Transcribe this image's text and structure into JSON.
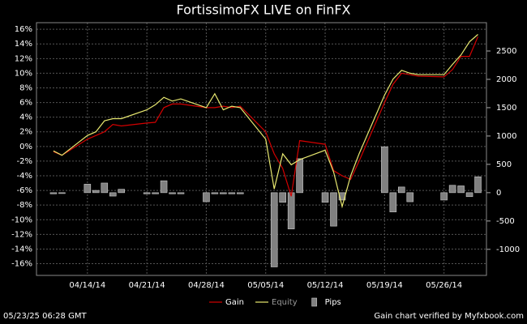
{
  "chart_data": {
    "type": "line",
    "title": "FortissimoFX LIVE on FinFX",
    "x": [
      "04/10/14",
      "04/11/14",
      "04/14/14",
      "04/15/14",
      "04/16/14",
      "04/17/14",
      "04/18/14",
      "04/21/14",
      "04/22/14",
      "04/23/14",
      "04/24/14",
      "04/25/14",
      "04/28/14",
      "04/29/14",
      "04/30/14",
      "05/01/14",
      "05/02/14",
      "05/05/14",
      "05/06/14",
      "05/07/14",
      "05/08/14",
      "05/09/14",
      "05/12/14",
      "05/13/14",
      "05/14/14",
      "05/15/14",
      "05/16/14",
      "05/19/14",
      "05/20/14",
      "05/21/14",
      "05/22/14",
      "05/23/14",
      "05/26/14",
      "05/27/14",
      "05/28/14",
      "05/29/14",
      "05/30/14"
    ],
    "xlim": [
      "04/08/14",
      "05/31/14"
    ],
    "xticks": [
      "04/14/14",
      "04/21/14",
      "04/28/14",
      "05/05/14",
      "05/12/14",
      "05/19/14",
      "05/26/14"
    ],
    "ylim": [
      -17.6,
      16.9
    ],
    "yticks": [
      {
        "value": 16,
        "label": "16%"
      },
      {
        "value": 14,
        "label": "14%"
      },
      {
        "value": 12,
        "label": "12%"
      },
      {
        "value": 10,
        "label": "10%"
      },
      {
        "value": 8,
        "label": "8%"
      },
      {
        "value": 6,
        "label": "6%"
      },
      {
        "value": 4,
        "label": "4%"
      },
      {
        "value": 2,
        "label": "2%"
      },
      {
        "value": 0,
        "label": "0%"
      },
      {
        "value": -2,
        "label": "-2%"
      },
      {
        "value": -4,
        "label": "-4%"
      },
      {
        "value": -6,
        "label": "-6%"
      },
      {
        "value": -8,
        "label": "-8%"
      },
      {
        "value": -10,
        "label": "-10%"
      },
      {
        "value": -12,
        "label": "-12%"
      },
      {
        "value": -14,
        "label": "-14%"
      },
      {
        "value": -16,
        "label": "-16%"
      }
    ],
    "y2lim": [
      -1460,
      3000
    ],
    "y2ticks": [
      2500,
      2000,
      1500,
      1000,
      500,
      0,
      -500,
      -1000
    ],
    "grid": true,
    "series": [
      {
        "name": "Gain",
        "color": "#d40000",
        "values": [
          -0.7,
          -1.2,
          1.0,
          1.5,
          2.0,
          3.0,
          2.8,
          3.2,
          3.3,
          5.3,
          5.8,
          5.8,
          5.3,
          5.3,
          5.5,
          5.3,
          5.5,
          2.0,
          -1.0,
          -3.0,
          -6.8,
          0.8,
          0.3,
          -3.3,
          -4.0,
          -4.5,
          -2.0,
          6.0,
          8.5,
          10.0,
          9.8,
          9.6,
          9.5,
          10.5,
          12.3,
          12.3,
          15.0
        ]
      },
      {
        "name": "Equity",
        "color": "#e8e870",
        "values": [
          -0.6,
          -1.2,
          1.5,
          2.0,
          3.5,
          3.8,
          3.8,
          5.0,
          5.7,
          6.7,
          6.2,
          6.5,
          5.3,
          7.2,
          5.0,
          5.5,
          5.3,
          1.0,
          -5.8,
          -1.0,
          -2.5,
          -1.8,
          -0.5,
          -3.5,
          -8.2,
          -4.0,
          -1.0,
          7.0,
          9.2,
          10.4,
          10.0,
          9.8,
          9.8,
          11.2,
          12.5,
          14.3,
          15.3
        ]
      },
      {
        "name": "Pips",
        "color": "#808080",
        "type": "bar",
        "axis": "y2",
        "values": [
          -20,
          -15,
          150,
          40,
          170,
          -60,
          60,
          -20,
          -20,
          210,
          -20,
          -20,
          -160,
          -20,
          -20,
          -20,
          -20,
          null,
          -1310,
          -170,
          -640,
          600,
          -170,
          -590,
          -130,
          null,
          null,
          810,
          -340,
          100,
          -160,
          null,
          -130,
          130,
          120,
          -70,
          280
        ]
      }
    ]
  },
  "footer": {
    "timestamp": "05/23/25 06:28 GMT",
    "verification": "Gain chart verified by Myfxbook.com"
  }
}
